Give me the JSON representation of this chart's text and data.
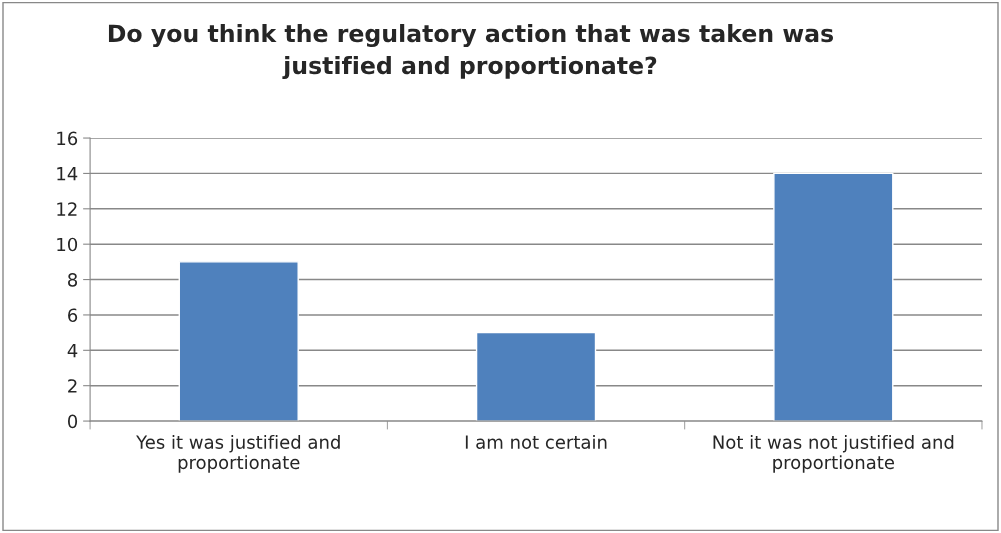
{
  "chart_data": {
    "type": "bar",
    "title": "Do you think the regulatory action that was taken was\njustified and proportionate?",
    "categories": [
      "Yes it was justified and\nproportionate",
      "I am not certain",
      "Not it was not justified and\nproportionate"
    ],
    "values": [
      9,
      5,
      14
    ],
    "color": "#4f81bd",
    "ylim": [
      0,
      16
    ],
    "yticks": [
      0,
      2,
      4,
      6,
      8,
      10,
      12,
      14,
      16
    ],
    "grid": "y",
    "legend": false
  }
}
